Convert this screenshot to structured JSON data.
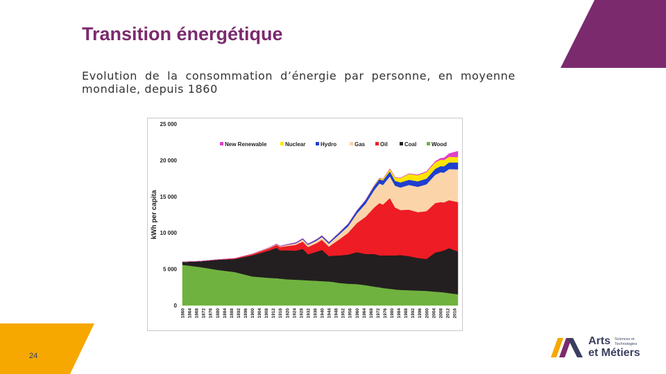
{
  "slide": {
    "title": "Transition énergétique",
    "subtitle": "Evolution de la consommation d’énergie par personne, en moyenne mondiale, depuis 1860",
    "page_number": "24",
    "accent_purple": "#7b2a6e",
    "accent_yellow": "#f6a800"
  },
  "logo": {
    "line1": "Arts",
    "line2": "et Métiers",
    "small1": "Sciences et",
    "small2": "Technologies"
  },
  "chart_data": {
    "type": "area",
    "stacked": true,
    "title": "",
    "xlabel": "",
    "ylabel": "kWh per capita",
    "ylim": [
      0,
      25000
    ],
    "yticks": [
      0,
      5000,
      10000,
      15000,
      20000,
      25000
    ],
    "ytick_labels": [
      "0",
      "5 000",
      "10 000",
      "15 000",
      "20 000",
      "25 000"
    ],
    "xlim": [
      1860,
      2018
    ],
    "xtick_labels": [
      "1860",
      "1864",
      "1868",
      "1872",
      "1876",
      "1880",
      "1884",
      "1888",
      "1892",
      "1896",
      "1900",
      "1904",
      "1908",
      "1912",
      "1916",
      "1920",
      "1924",
      "1928",
      "1932",
      "1936",
      "1940",
      "1944",
      "1948",
      "1952",
      "1956",
      "1960",
      "1964",
      "1968",
      "1972",
      "1976",
      "1980",
      "1984",
      "1988",
      "1992",
      "1996",
      "2000",
      "2004",
      "2008",
      "2012",
      "2016"
    ],
    "grid": false,
    "legend": "top",
    "x": [
      1860,
      1870,
      1880,
      1890,
      1900,
      1910,
      1914,
      1916,
      1920,
      1925,
      1929,
      1932,
      1937,
      1940,
      1944,
      1946,
      1950,
      1955,
      1960,
      1965,
      1970,
      1973,
      1975,
      1979,
      1982,
      1985,
      1990,
      1995,
      2000,
      2005,
      2008,
      2010,
      2013,
      2018
    ],
    "series": [
      {
        "name": "Wood",
        "color": "#70b23f",
        "values": [
          5600,
          5300,
          4900,
          4600,
          4000,
          3800,
          3750,
          3700,
          3600,
          3550,
          3500,
          3450,
          3400,
          3350,
          3300,
          3250,
          3100,
          3000,
          2950,
          2800,
          2600,
          2500,
          2400,
          2300,
          2200,
          2150,
          2100,
          2050,
          2000,
          1900,
          1850,
          1800,
          1700,
          1550
        ]
      },
      {
        "name": "Coal",
        "color": "#231f20",
        "values": [
          400,
          800,
          1400,
          1800,
          2900,
          3800,
          4200,
          3900,
          4000,
          4000,
          4300,
          3600,
          4000,
          4300,
          3500,
          3600,
          3800,
          4000,
          4400,
          4300,
          4500,
          4400,
          4500,
          4600,
          4700,
          4800,
          4700,
          4500,
          4400,
          5400,
          5600,
          5800,
          6200,
          5900
        ]
      },
      {
        "name": "Oil",
        "color": "#ee1c24",
        "values": [
          0,
          0,
          20,
          80,
          150,
          300,
          400,
          450,
          600,
          800,
          1000,
          1000,
          1200,
          1400,
          1300,
          1600,
          2200,
          3000,
          4000,
          5100,
          6400,
          7200,
          7000,
          7900,
          6600,
          6200,
          6400,
          6300,
          6600,
          6800,
          6800,
          6600,
          6600,
          6800
        ]
      },
      {
        "name": "Gas",
        "color": "#fbd5a9",
        "values": [
          0,
          0,
          0,
          10,
          30,
          60,
          80,
          90,
          150,
          200,
          300,
          300,
          350,
          400,
          400,
          500,
          700,
          900,
          1300,
          1800,
          2400,
          2700,
          2700,
          3000,
          3000,
          3100,
          3400,
          3500,
          3700,
          3900,
          4100,
          4100,
          4300,
          4500
        ]
      },
      {
        "name": "Hydro",
        "color": "#1f3fcf",
        "values": [
          0,
          0,
          0,
          0,
          10,
          30,
          40,
          50,
          70,
          100,
          130,
          130,
          160,
          180,
          200,
          210,
          260,
          330,
          400,
          480,
          560,
          600,
          620,
          680,
          680,
          700,
          720,
          750,
          780,
          820,
          850,
          870,
          900,
          950
        ]
      },
      {
        "name": "Nuclear",
        "color": "#ffe600",
        "values": [
          0,
          0,
          0,
          0,
          0,
          0,
          0,
          0,
          0,
          0,
          0,
          0,
          0,
          0,
          0,
          0,
          0,
          0,
          10,
          30,
          80,
          150,
          200,
          350,
          450,
          600,
          800,
          850,
          900,
          900,
          880,
          870,
          780,
          750
        ]
      },
      {
        "name": "New Renewable",
        "color": "#e040c8",
        "values": [
          0,
          0,
          0,
          0,
          0,
          0,
          0,
          0,
          0,
          0,
          0,
          0,
          0,
          0,
          0,
          0,
          0,
          0,
          0,
          0,
          0,
          0,
          5,
          10,
          15,
          20,
          40,
          60,
          80,
          130,
          200,
          280,
          450,
          800
        ]
      }
    ]
  }
}
